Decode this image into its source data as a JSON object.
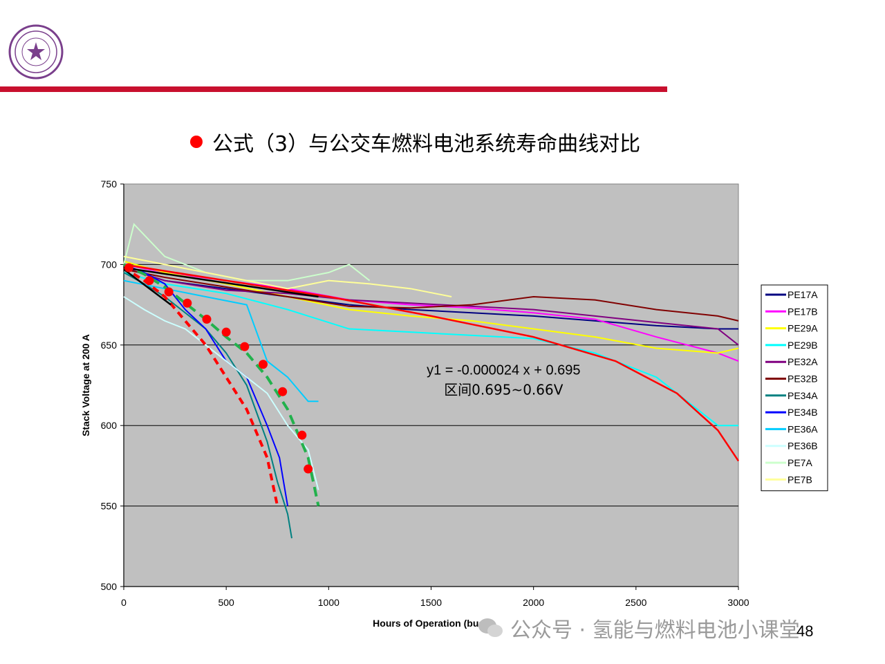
{
  "slide": {
    "title": "公式（3）与公交车燃料电池系统寿命曲线对比",
    "page_number": "48",
    "watermark": "公众号 · 氢能与燃料电池小课堂",
    "colors": {
      "accent_rule": "#c8102e",
      "bullet": "#ff0000",
      "logo": "#7a3f8c"
    }
  },
  "chart_data": {
    "type": "line",
    "title": "",
    "xlabel": "Hours of Operation (bus)",
    "ylabel": "Stack Voltage at 200 A",
    "xlim": [
      0,
      3000
    ],
    "ylim": [
      500,
      750
    ],
    "x_ticks": [
      0,
      500,
      1000,
      1500,
      2000,
      2500,
      3000
    ],
    "y_ticks": [
      500,
      550,
      600,
      650,
      700,
      750
    ],
    "grid": "horizontal",
    "plot_background": "#c0c0c0",
    "legend_position": "right",
    "annotation": {
      "line1": "y1 = -0.000024 x + 0.695",
      "line2": "区间0.695~0.66V",
      "x": 1550,
      "y": 635
    },
    "series": [
      {
        "name": "PE17A",
        "color": "#000080",
        "x": [
          0,
          200,
          500,
          800,
          1100,
          1400,
          1700,
          2000,
          2300,
          2600,
          2900,
          3000
        ],
        "y": [
          698,
          690,
          685,
          680,
          675,
          672,
          670,
          668,
          665,
          662,
          660,
          660
        ]
      },
      {
        "name": "PE17B",
        "color": "#ff00ff",
        "x": [
          0,
          200,
          500,
          800,
          1100,
          1400,
          1700,
          2000,
          2300,
          2600,
          2900,
          3000
        ],
        "y": [
          700,
          695,
          690,
          685,
          678,
          675,
          673,
          670,
          666,
          655,
          645,
          640
        ]
      },
      {
        "name": "PE29A",
        "color": "#ffff00",
        "x": [
          0,
          200,
          500,
          800,
          1100,
          1400,
          1700,
          2000,
          2300,
          2600,
          2900,
          3000
        ],
        "y": [
          702,
          695,
          688,
          680,
          672,
          668,
          665,
          660,
          655,
          648,
          645,
          648
        ]
      },
      {
        "name": "PE29B",
        "color": "#00ffff",
        "x": [
          0,
          200,
          500,
          800,
          1100,
          1400,
          1700,
          2000,
          2300,
          2600,
          2900,
          3000
        ],
        "y": [
          695,
          688,
          682,
          672,
          660,
          658,
          656,
          654,
          645,
          630,
          600,
          600
        ]
      },
      {
        "name": "PE32A",
        "color": "#800080",
        "x": [
          0,
          200,
          500,
          800,
          1100,
          1400,
          1700,
          2000,
          2300,
          2600,
          2900,
          3000
        ],
        "y": [
          698,
          690,
          684,
          682,
          678,
          676,
          674,
          672,
          668,
          664,
          660,
          650
        ]
      },
      {
        "name": "PE32B",
        "color": "#800000",
        "x": [
          0,
          200,
          500,
          800,
          1100,
          1400,
          1700,
          2000,
          2300,
          2600,
          2900,
          3000
        ],
        "y": [
          697,
          692,
          686,
          680,
          674,
          673,
          675,
          680,
          678,
          672,
          668,
          665
        ]
      },
      {
        "name": "PE34A",
        "color": "#008080",
        "x": [
          0,
          100,
          200,
          300,
          400,
          500,
          600,
          700,
          750,
          800,
          820
        ],
        "y": [
          695,
          688,
          680,
          670,
          660,
          645,
          625,
          590,
          565,
          545,
          530
        ]
      },
      {
        "name": "PE34B",
        "color": "#0000ff",
        "x": [
          0,
          100,
          200,
          300,
          400,
          500,
          600,
          700,
          760,
          800
        ],
        "y": [
          700,
          695,
          688,
          672,
          660,
          640,
          630,
          600,
          580,
          550
        ]
      },
      {
        "name": "PE36A",
        "color": "#00ccff",
        "x": [
          0,
          200,
          400,
          600,
          700,
          800,
          900,
          950
        ],
        "y": [
          690,
          685,
          680,
          675,
          640,
          630,
          615,
          615
        ]
      },
      {
        "name": "PE36B",
        "color": "#ccffff",
        "x": [
          0,
          100,
          200,
          300,
          400,
          500,
          600,
          700,
          800,
          900,
          950
        ],
        "y": [
          680,
          672,
          665,
          660,
          650,
          640,
          630,
          620,
          600,
          585,
          560
        ]
      },
      {
        "name": "PE7A",
        "color": "#ccffcc",
        "x": [
          0,
          50,
          200,
          400,
          600,
          800,
          1000,
          1100,
          1200
        ],
        "y": [
          700,
          725,
          705,
          695,
          690,
          690,
          695,
          700,
          690
        ]
      },
      {
        "name": "PE7B",
        "color": "#ffff99",
        "x": [
          0,
          200,
          400,
          600,
          800,
          1000,
          1200,
          1400,
          1600
        ],
        "y": [
          705,
          700,
          695,
          690,
          685,
          690,
          688,
          685,
          680
        ]
      }
    ],
    "fit_lines": [
      {
        "style": "red-solid",
        "color": "#ff0000",
        "x": [
          0,
          500,
          1000,
          1500,
          2000,
          2400,
          2700,
          2900,
          3000
        ],
        "y": [
          700,
          690,
          680,
          668,
          655,
          640,
          620,
          597,
          578
        ]
      },
      {
        "style": "red-dashed",
        "color": "#ff0000",
        "x": [
          0,
          100,
          200,
          300,
          400,
          500,
          600,
          700,
          750
        ],
        "y": [
          698,
          690,
          680,
          665,
          650,
          630,
          610,
          580,
          550
        ]
      },
      {
        "style": "green-dashed",
        "color": "#22b14c",
        "x": [
          0,
          100,
          200,
          300,
          400,
          500,
          600,
          700,
          800,
          900,
          950
        ],
        "y": [
          700,
          694,
          686,
          676,
          666,
          655,
          645,
          630,
          610,
          580,
          550
        ]
      },
      {
        "style": "black-solid",
        "color": "#000000",
        "x": [
          0,
          950
        ],
        "y": [
          698,
          680
        ]
      },
      {
        "style": "black-solid",
        "color": "#000000",
        "x": [
          0,
          230
        ],
        "y": [
          697,
          675
        ]
      }
    ],
    "model_points": {
      "color": "#ff0000",
      "x": [
        25,
        125,
        220,
        310,
        405,
        500,
        590,
        680,
        775,
        870,
        900
      ],
      "y": [
        698,
        690,
        683,
        676,
        666,
        658,
        649,
        638,
        621,
        594,
        573
      ]
    }
  }
}
